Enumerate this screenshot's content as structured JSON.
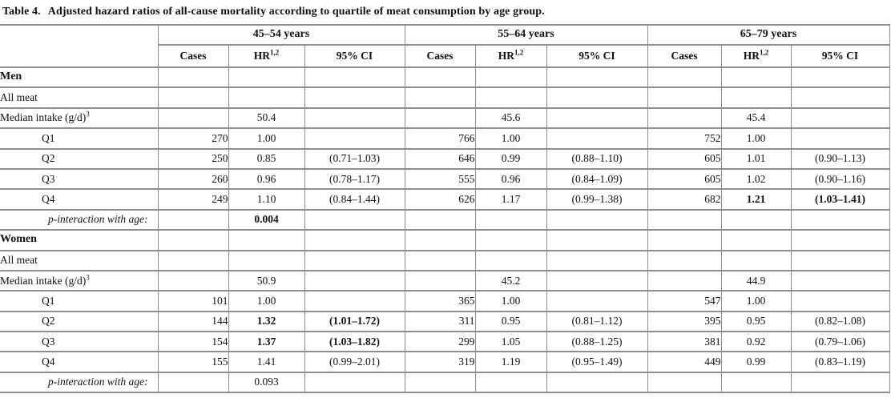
{
  "title": {
    "label": "Table 4.",
    "text": "Adjusted hazard ratios of all-cause mortality according to quartile of meat consumption by age group."
  },
  "table": {
    "age_groups": [
      "45–54 years",
      "55–64 years",
      "65–79 years"
    ],
    "sub_headers": {
      "cases": "Cases",
      "hr": "HR",
      "hr_sup": "1,2",
      "ci": "95% CI"
    },
    "rows": [
      {
        "label": "Men",
        "type": "section",
        "cells": [
          "",
          "",
          "",
          "",
          "",
          "",
          "",
          "",
          ""
        ]
      },
      {
        "label": "All meat",
        "type": "plain",
        "cells": [
          "",
          "",
          "",
          "",
          "",
          "",
          "",
          "",
          ""
        ]
      },
      {
        "label": "Median intake (g/d)",
        "sup": "3",
        "type": "plain",
        "cells": [
          "",
          "50.4",
          "",
          "",
          "45.6",
          "",
          "",
          "45.4",
          ""
        ]
      },
      {
        "label": "Q1",
        "type": "quartile",
        "cells": [
          "270",
          "1.00",
          "",
          "766",
          "1.00",
          "",
          "752",
          "1.00",
          ""
        ]
      },
      {
        "label": "Q2",
        "type": "quartile",
        "cells": [
          "250",
          "0.85",
          "(0.71–1.03)",
          "646",
          "0.99",
          "(0.88–1.10)",
          "605",
          "1.01",
          "(0.90–1.13)"
        ]
      },
      {
        "label": "Q3",
        "type": "quartile",
        "cells": [
          "260",
          "0.96",
          "(0.78–1.17)",
          "555",
          "0.96",
          "(0.84–1.09)",
          "605",
          "1.02",
          "(0.90–1.16)"
        ]
      },
      {
        "label": "Q4",
        "type": "quartile",
        "cells": [
          "249",
          "1.10",
          "(0.84–1.44)",
          "626",
          "1.17",
          "(0.99–1.38)",
          "682",
          "1.21",
          "(1.03–1.41)"
        ],
        "bold": [
          7,
          8
        ]
      },
      {
        "label": "p-interaction with age:",
        "type": "pint",
        "cells": [
          "",
          "0.004",
          "",
          "",
          "",
          "",
          "",
          "",
          ""
        ],
        "bold": [
          1
        ]
      },
      {
        "label": "Women",
        "type": "section",
        "cells": [
          "",
          "",
          "",
          "",
          "",
          "",
          "",
          "",
          ""
        ]
      },
      {
        "label": "All meat",
        "type": "plain",
        "cells": [
          "",
          "",
          "",
          "",
          "",
          "",
          "",
          "",
          ""
        ]
      },
      {
        "label": "Median intake (g/d)",
        "sup": "3",
        "type": "plain",
        "cells": [
          "",
          "50.9",
          "",
          "",
          "45.2",
          "",
          "",
          "44.9",
          ""
        ]
      },
      {
        "label": "Q1",
        "type": "quartile",
        "cells": [
          "101",
          "1.00",
          "",
          "365",
          "1.00",
          "",
          "547",
          "1.00",
          ""
        ]
      },
      {
        "label": "Q2",
        "type": "quartile",
        "cells": [
          "144",
          "1.32",
          "(1.01–1.72)",
          "311",
          "0.95",
          "(0.81–1.12)",
          "395",
          "0.95",
          "(0.82–1.08)"
        ],
        "bold": [
          1,
          2
        ]
      },
      {
        "label": "Q3",
        "type": "quartile",
        "cells": [
          "154",
          "1.37",
          "(1.03–1.82)",
          "299",
          "1.05",
          "(0.88–1.25)",
          "381",
          "0.92",
          "(0.79–1.06)"
        ],
        "bold": [
          1,
          2
        ]
      },
      {
        "label": "Q4",
        "type": "quartile",
        "cells": [
          "155",
          "1.41",
          "(0.99–2.01)",
          "319",
          "1.19",
          "(0.95–1.49)",
          "449",
          "0.99",
          "(0.83–1.19)"
        ]
      },
      {
        "label": "p-interaction with age:",
        "type": "pint",
        "cells": [
          "",
          "0.093",
          "",
          "",
          "",
          "",
          "",
          "",
          ""
        ]
      }
    ]
  }
}
